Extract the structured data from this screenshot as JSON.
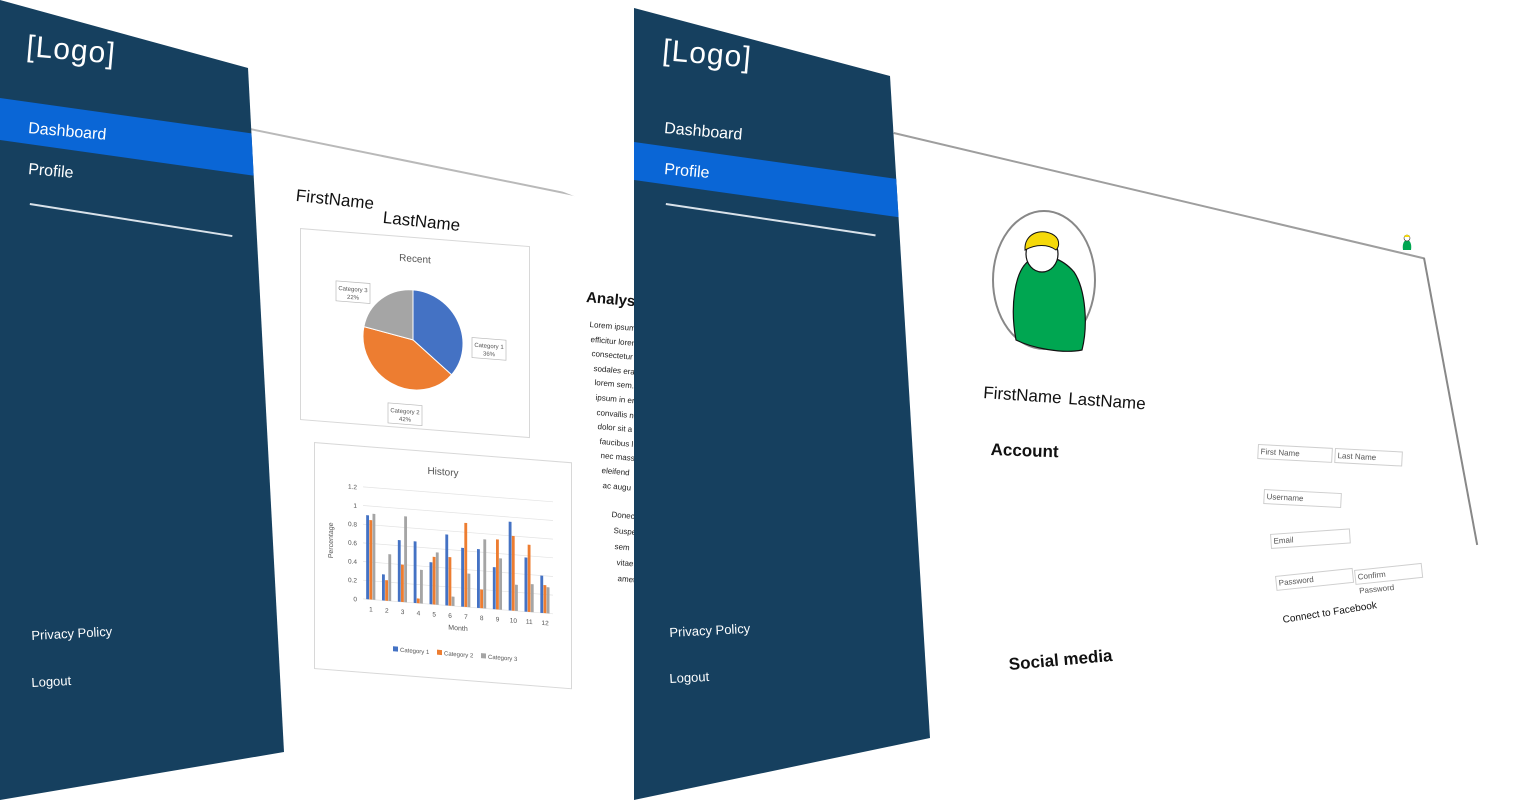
{
  "dashboard_screen": {
    "logo": "[Logo]",
    "nav": [
      {
        "label": "Dashboard",
        "active": true
      },
      {
        "label": "Profile",
        "active": false
      }
    ],
    "footer": {
      "privacy": "Privacy Policy",
      "logout": "Logout"
    },
    "user": {
      "first_name": "FirstName",
      "last_name": "LastName"
    },
    "analysis": {
      "title": "Analysis",
      "lines": [
        "Lorem ipsum d",
        "efficitur lorem",
        "consectetur t",
        "sodales erat",
        "lorem sem.",
        "ipsum in er",
        "convallis n",
        "dolor sit a",
        "faucibus l",
        "nec mass",
        "eleifend",
        "ac augu"
      ],
      "lines2": [
        "Donec",
        "Suspe",
        "sem",
        "vitae",
        "amet"
      ]
    }
  },
  "chart_data": [
    {
      "type": "pie",
      "title": "Recent",
      "slices": [
        {
          "label": "Category 1",
          "value": 36,
          "color": "#4472c4"
        },
        {
          "label": "Category 2",
          "value": 42,
          "color": "#ed7d31"
        },
        {
          "label": "Category 3",
          "value": 22,
          "color": "#a5a5a5"
        }
      ],
      "data_labels": [
        "Category 1\n36%",
        "Category 2\n42%",
        "Category 3\n22%"
      ]
    },
    {
      "type": "bar",
      "title": "History",
      "xlabel": "Month",
      "ylabel": "Percentage",
      "ylim": [
        0,
        1.2
      ],
      "yticks": [
        "0",
        "0.2",
        "0.4",
        "0.6",
        "0.8",
        "1",
        "1.2"
      ],
      "categories": [
        "1",
        "2",
        "3",
        "4",
        "5",
        "6",
        "7",
        "8",
        "9",
        "10",
        "11",
        "12"
      ],
      "series": [
        {
          "name": "Category 1",
          "color": "#4472c4",
          "values": [
            0.9,
            0.28,
            0.66,
            0.66,
            0.45,
            0.76,
            0.63,
            0.63,
            0.45,
            0.95,
            0.58,
            0.4
          ]
        },
        {
          "name": "Category 2",
          "color": "#ed7d31",
          "values": [
            0.85,
            0.22,
            0.4,
            0.05,
            0.51,
            0.52,
            0.9,
            0.2,
            0.75,
            0.8,
            0.72,
            0.3
          ]
        },
        {
          "name": "Category 3",
          "color": "#a5a5a5",
          "values": [
            0.92,
            0.5,
            0.92,
            0.36,
            0.56,
            0.1,
            0.36,
            0.74,
            0.55,
            0.28,
            0.3,
            0.28
          ]
        }
      ],
      "legend": "bottom"
    }
  ],
  "profile_screen": {
    "logo": "[Logo]",
    "nav": [
      {
        "label": "Dashboard",
        "active": false
      },
      {
        "label": "Profile",
        "active": true
      }
    ],
    "footer": {
      "privacy": "Privacy Policy",
      "logout": "Logout"
    },
    "user": {
      "first_name": "FirstName",
      "last_name": "LastName"
    },
    "account_title": "Account",
    "social_title": "Social media",
    "form": {
      "first_name_ph": "First Name",
      "last_name_ph": "Last Name",
      "username_ph": "Username",
      "email_ph": "Email",
      "password_ph": "Password",
      "confirm_password_ph": "Confirm Password",
      "facebook": "Connect to Facebook"
    },
    "avatar_colors": {
      "hair": "#f5d90a",
      "body": "#00a651"
    }
  }
}
